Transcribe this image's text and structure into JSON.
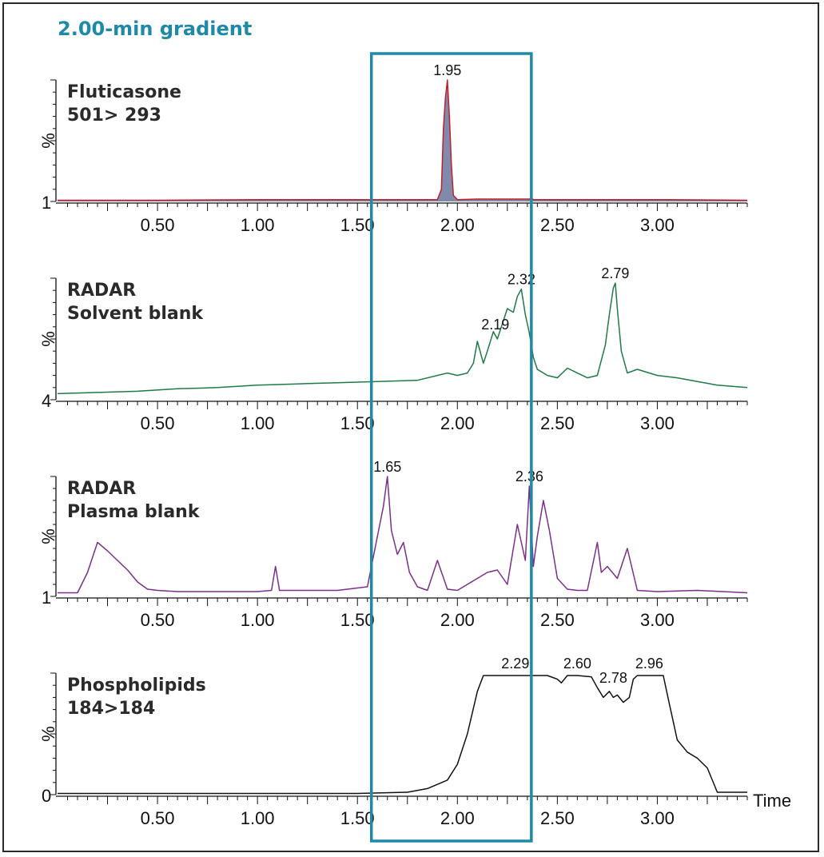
{
  "title": "2.00-min gradient",
  "x_axis_label": "Time",
  "highlight_color": "#1e8aa8",
  "highlight_range": [
    1.57,
    2.37
  ],
  "chart_data": [
    {
      "type": "line",
      "trace_label_1": "Fluticasone",
      "trace_label_2": "501> 293",
      "y_axis_label": "%",
      "y_baseline_label": "1",
      "color": "#c0202a",
      "fill_color": "#1a2a6a",
      "xlim": [
        0.0,
        3.45
      ],
      "ylim": [
        0,
        100
      ],
      "x_ticks": [
        "0.50",
        "1.00",
        "1.50",
        "2.00",
        "2.50",
        "3.00"
      ],
      "x_tick_values": [
        0.5,
        1.0,
        1.5,
        2.0,
        2.5,
        3.0
      ],
      "peak_labels": [
        {
          "label": "1.95",
          "x": 1.95,
          "y": 100
        }
      ],
      "x": [
        0.0,
        0.5,
        1.0,
        1.5,
        1.9,
        1.92,
        1.93,
        1.94,
        1.95,
        1.96,
        1.97,
        1.98,
        2.0,
        2.1,
        2.36,
        2.37,
        2.38,
        3.05,
        3.45
      ],
      "y": [
        1,
        1,
        1.5,
        1.5,
        1.5,
        10,
        60,
        85,
        100,
        70,
        30,
        5,
        1.5,
        2,
        2,
        3,
        1.5,
        1.5,
        1
      ]
    },
    {
      "type": "line",
      "trace_label_1": "RADAR",
      "trace_label_2": "Solvent blank",
      "y_axis_label": "%",
      "y_baseline_label": "4",
      "color": "#1f7a45",
      "xlim": [
        0.0,
        3.45
      ],
      "ylim": [
        0,
        100
      ],
      "x_ticks": [
        "0.50",
        "1.00",
        "1.50",
        "2.00",
        "2.50",
        "3.00"
      ],
      "x_tick_values": [
        0.5,
        1.0,
        1.5,
        2.0,
        2.5,
        3.0
      ],
      "peak_labels": [
        {
          "label": "2.19",
          "x": 2.19,
          "y": 54
        },
        {
          "label": "2.32",
          "x": 2.32,
          "y": 91
        },
        {
          "label": "2.79",
          "x": 2.79,
          "y": 96
        }
      ],
      "x": [
        0.0,
        0.2,
        0.4,
        0.6,
        0.8,
        1.0,
        1.2,
        1.4,
        1.6,
        1.8,
        1.95,
        2.0,
        2.05,
        2.08,
        2.1,
        2.13,
        2.15,
        2.18,
        2.2,
        2.23,
        2.25,
        2.28,
        2.3,
        2.32,
        2.34,
        2.36,
        2.38,
        2.4,
        2.45,
        2.5,
        2.55,
        2.6,
        2.65,
        2.7,
        2.74,
        2.76,
        2.78,
        2.79,
        2.8,
        2.82,
        2.85,
        2.9,
        3.0,
        3.1,
        3.2,
        3.3,
        3.45
      ],
      "y": [
        5,
        6,
        7,
        9,
        10,
        12,
        13,
        14,
        15,
        16,
        22,
        20,
        22,
        30,
        48,
        30,
        40,
        56,
        50,
        65,
        75,
        72,
        85,
        91,
        70,
        55,
        35,
        25,
        20,
        18,
        26,
        22,
        18,
        20,
        45,
        70,
        92,
        96,
        75,
        40,
        22,
        25,
        20,
        18,
        15,
        12,
        10
      ]
    },
    {
      "type": "line",
      "trace_label_1": "RADAR",
      "trace_label_2": "Plasma blank",
      "y_axis_label": "%",
      "y_baseline_label": "1",
      "color": "#7a2f8a",
      "xlim": [
        0.0,
        3.45
      ],
      "ylim": [
        0,
        100
      ],
      "x_ticks": [
        "0.50",
        "1.00",
        "1.50",
        "2.00",
        "2.50",
        "3.00"
      ],
      "x_tick_values": [
        0.5,
        1.0,
        1.5,
        2.0,
        2.5,
        3.0
      ],
      "peak_labels": [
        {
          "label": "1.65",
          "x": 1.65,
          "y": 100
        },
        {
          "label": "2.36",
          "x": 2.36,
          "y": 92
        }
      ],
      "x": [
        0.0,
        0.1,
        0.15,
        0.2,
        0.25,
        0.3,
        0.35,
        0.4,
        0.45,
        0.5,
        0.6,
        0.8,
        1.0,
        1.07,
        1.09,
        1.11,
        1.2,
        1.4,
        1.55,
        1.6,
        1.63,
        1.65,
        1.67,
        1.7,
        1.73,
        1.76,
        1.8,
        1.85,
        1.9,
        1.95,
        2.0,
        2.1,
        2.15,
        2.2,
        2.25,
        2.3,
        2.34,
        2.36,
        2.38,
        2.4,
        2.43,
        2.46,
        2.5,
        2.55,
        2.6,
        2.65,
        2.7,
        2.72,
        2.75,
        2.8,
        2.85,
        2.9,
        3.0,
        3.2,
        3.45
      ],
      "y": [
        3,
        3,
        20,
        45,
        38,
        30,
        22,
        12,
        6,
        5,
        4,
        4,
        4,
        5,
        25,
        5,
        5,
        5,
        8,
        50,
        75,
        100,
        55,
        35,
        45,
        20,
        8,
        5,
        30,
        6,
        5,
        15,
        20,
        22,
        10,
        60,
        30,
        92,
        25,
        50,
        80,
        55,
        15,
        6,
        5,
        5,
        45,
        20,
        25,
        15,
        40,
        5,
        4,
        5,
        3
      ]
    },
    {
      "type": "line",
      "trace_label_1": "Phospholipids",
      "trace_label_2": "184>184",
      "y_axis_label": "%",
      "y_baseline_label": "0",
      "color": "#111111",
      "xlim": [
        0.0,
        3.45
      ],
      "ylim": [
        0,
        100
      ],
      "x_ticks": [
        "0.50",
        "1.00",
        "1.50",
        "2.00",
        "2.50",
        "3.00"
      ],
      "x_tick_values": [
        0.5,
        1.0,
        1.5,
        2.0,
        2.5,
        3.0
      ],
      "peak_labels": [
        {
          "label": "2.29",
          "x": 2.29,
          "y": 100
        },
        {
          "label": "2.60",
          "x": 2.6,
          "y": 100
        },
        {
          "label": "2.78",
          "x": 2.78,
          "y": 88
        },
        {
          "label": "2.96",
          "x": 2.96,
          "y": 100
        }
      ],
      "x": [
        0.0,
        1.5,
        1.75,
        1.85,
        1.95,
        2.0,
        2.05,
        2.1,
        2.13,
        2.16,
        2.3,
        2.45,
        2.5,
        2.52,
        2.55,
        2.58,
        2.6,
        2.67,
        2.7,
        2.73,
        2.76,
        2.78,
        2.8,
        2.83,
        2.86,
        2.88,
        2.9,
        3.03,
        3.06,
        3.1,
        3.15,
        3.2,
        3.25,
        3.3,
        3.35,
        3.45
      ],
      "y": [
        1,
        1,
        2,
        5,
        12,
        25,
        50,
        85,
        98,
        98,
        98,
        98,
        95,
        92,
        98,
        98,
        98,
        97,
        88,
        80,
        85,
        80,
        82,
        76,
        80,
        95,
        98,
        98,
        75,
        45,
        35,
        30,
        22,
        2,
        2,
        2
      ]
    }
  ]
}
